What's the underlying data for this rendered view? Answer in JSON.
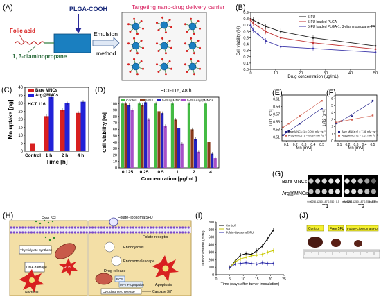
{
  "panel_labels": [
    "(A)",
    "(B)",
    "(C)",
    "(D)",
    "(E)",
    "(F)",
    "(G)",
    "(H)",
    "(I)",
    "(J)"
  ],
  "panelA": {
    "plga_label": "PLGA-COOH",
    "folic_label": "Folic acid",
    "diamino_label": "1, 3-diaminopropane",
    "emulsion_label": "Emulsion",
    "method_label": "method",
    "carrier_title": "Targeting nano-drug delivery carrier"
  },
  "chart_data": [
    {
      "panel": "B",
      "type": "line",
      "xlabel": "Drug concentration (μg/mL)",
      "ylabel": "Cell viability (%)",
      "xticks": [
        "0",
        "10",
        "20",
        "30",
        "40",
        "50"
      ],
      "yticks": [
        "0.0",
        "0.1",
        "0.2",
        "0.3",
        "0.4",
        "0.5",
        "0.6",
        "0.7",
        "0.8",
        "0.9"
      ],
      "xlim": [
        0,
        50
      ],
      "ylim": [
        0,
        0.9
      ],
      "legend_position": "top-right",
      "x": [
        0,
        1,
        3,
        6,
        12,
        25,
        50
      ],
      "series": [
        {
          "name": "5-FU",
          "color": "#1a1a1a",
          "values": [
            0.8,
            0.78,
            0.74,
            0.68,
            0.6,
            0.5,
            0.37
          ]
        },
        {
          "name": "5-FU loaded PLGA",
          "color": "#c03030",
          "values": [
            0.78,
            0.73,
            0.68,
            0.6,
            0.5,
            0.42,
            0.32
          ]
        },
        {
          "name": "5-FU loaded PLGA-1, 3-diaminopropane-FA",
          "color": "#3a35a8",
          "values": [
            0.7,
            0.62,
            0.55,
            0.45,
            0.36,
            0.33,
            0.27
          ]
        }
      ]
    },
    {
      "panel": "C",
      "type": "bar",
      "title": "HCT 116",
      "xlabel": "Time [h]",
      "ylabel": "Mn uptake [pg]",
      "categories": [
        "Control",
        "1 h",
        "2 h",
        "4 h"
      ],
      "yticks": [
        "0",
        "5",
        "10",
        "15",
        "20",
        "25",
        "30",
        "35",
        "40"
      ],
      "ylim": [
        0,
        40
      ],
      "legend_position": "top-left",
      "series": [
        {
          "name": "Bare MNCs",
          "color": "#d82020",
          "values": [
            5,
            22,
            26,
            24
          ]
        },
        {
          "name": "Arg@MNCs",
          "color": "#2222d8",
          "values": [
            null,
            34,
            30,
            31
          ]
        }
      ]
    },
    {
      "panel": "D",
      "type": "bar",
      "title": "HCT-116, 48 h",
      "xlabel": "Concentration [μg/mL]",
      "ylabel": "Cell viability [%]",
      "categories": [
        "0.125",
        "0.25",
        "0.5",
        "1",
        "2",
        "4"
      ],
      "yticks": [
        "0",
        "10",
        "20",
        "30",
        "40",
        "50",
        "60",
        "70",
        "80",
        "90",
        "100"
      ],
      "ylim": [
        0,
        110
      ],
      "legend_position": "top",
      "series": [
        {
          "name": "Control",
          "color": "#44bb44",
          "values": [
            100,
            100,
            100,
            100,
            100,
            100
          ]
        },
        {
          "name": "5-FU",
          "color": "#8a3a1a",
          "values": [
            100,
            98,
            88,
            75,
            60,
            40
          ]
        },
        {
          "name": "5-FU@MNCs",
          "color": "#2222c0",
          "values": [
            98,
            102,
            85,
            62,
            45,
            22
          ]
        },
        {
          "name": "5-FU-Arg@MNCs",
          "color": "#a850c8",
          "values": [
            90,
            75,
            65,
            38,
            25,
            15
          ]
        }
      ]
    },
    {
      "panel": "E",
      "type": "scatter",
      "xlabel": "Mn [mM]",
      "ylabel": "1/T1 [s⁻¹]",
      "xticks": [
        "0.1",
        "0.2",
        "0.3",
        "0.4",
        "0.5"
      ],
      "yticks": [
        "0.51",
        "0.53",
        "0.55",
        "0.57",
        "0.59",
        "0.61"
      ],
      "xlim": [
        0.05,
        0.55
      ],
      "ylim": [
        0.5,
        0.62
      ],
      "legend_position": "bottom-right",
      "series": [
        {
          "name": "Bare MNCs r1 = 0.094 mM⁻¹s⁻¹",
          "color": "#22228a",
          "x": [
            0.0625,
            0.125,
            0.25,
            0.5
          ],
          "y": [
            0.515,
            0.525,
            0.545,
            0.585
          ]
        },
        {
          "name": "Arg@MNCs r1 = 0.089 mM⁻¹s⁻¹",
          "color": "#d06050",
          "x": [
            0.0625,
            0.125,
            0.25,
            0.5
          ],
          "y": [
            0.535,
            0.545,
            0.565,
            0.605
          ]
        }
      ]
    },
    {
      "panel": "F",
      "type": "scatter",
      "xlabel": "Mn [mM]",
      "ylabel": "1/T2 [s⁻¹]",
      "xticks": [
        "0.1",
        "0.2",
        "0.3",
        "0.4",
        "0.5"
      ],
      "yticks": [
        "0",
        "1",
        "2",
        "3",
        "4",
        "5",
        "6"
      ],
      "xlim": [
        0.05,
        0.55
      ],
      "ylim": [
        0,
        6.5
      ],
      "legend_position": "bottom-right",
      "series": [
        {
          "name": "Bare MNCs r2 = 7.36 mM⁻¹s⁻¹",
          "color": "#22228a",
          "x": [
            0.0625,
            0.125,
            0.25,
            0.5
          ],
          "y": [
            2.5,
            2.8,
            3.5,
            5.7
          ]
        },
        {
          "name": "Arg@MNCs r2 = 2.61 mM⁻¹s⁻¹",
          "color": "#d06050",
          "x": [
            0.0625,
            0.125,
            0.25,
            0.5
          ],
          "y": [
            2.6,
            2.8,
            3.0,
            3.6
          ]
        }
      ]
    },
    {
      "panel": "I",
      "type": "line",
      "xlabel": "Time (days after tumor inoculation)",
      "ylabel": "Tumor volume (mm³)",
      "xticks": [
        "0",
        "5",
        "10",
        "15",
        "20",
        "25"
      ],
      "yticks": [
        "0",
        "100",
        "200",
        "300",
        "400",
        "500",
        "600",
        "700"
      ],
      "xlim": [
        0,
        25
      ],
      "ylim": [
        0,
        700
      ],
      "legend_position": "top-left",
      "x": [
        5,
        7,
        9,
        11,
        13,
        15,
        17,
        19,
        21
      ],
      "series": [
        {
          "name": "Control",
          "color": "#000000",
          "values": [
            95,
            180,
            260,
            280,
            270,
            320,
            380,
            480,
            590
          ]
        },
        {
          "name": "5FU",
          "color": "#c8c800",
          "values": [
            95,
            170,
            210,
            230,
            250,
            260,
            270,
            300,
            320
          ]
        },
        {
          "name": "Folate-Liposomal5FU",
          "color": "#2a2aa8",
          "values": [
            95,
            140,
            150,
            160,
            150,
            140,
            160,
            150,
            150
          ]
        }
      ]
    }
  ],
  "panelG": {
    "row1": "Bare MNCs",
    "row2": "Arg@MNCs",
    "concs": [
      "0.0625",
      "0.125",
      "0.187",
      "0.250",
      "0.5"
    ],
    "unit": "mM [Mn]",
    "t1_label": "T1",
    "t2_label": "T2"
  },
  "panelH": {
    "free_label": "Free 5FU",
    "folate_lipo_label": "Folate-liposomal5FU",
    "receptor_label": "Folate receptor",
    "ts_label": "Thymidylate synthase",
    "dna_label": "DNA damage",
    "ros_label": "ROS",
    "necrosis_label": "Necrosis",
    "endocytosis_label": "Endocytosis",
    "escape_label": "Endosomalescape",
    "release_label": "Drug release",
    "ros2_label": "ROS",
    "mpt_label": "MPT Propagation",
    "apoptosis_label": "Apoptosis",
    "cyto_label": "Cytochrome c release",
    "caspase_label": "Caspase 3/7"
  },
  "panelJ": {
    "labels": [
      "Control",
      "Free 5FU",
      "Folate-Liposomal5FU"
    ]
  }
}
